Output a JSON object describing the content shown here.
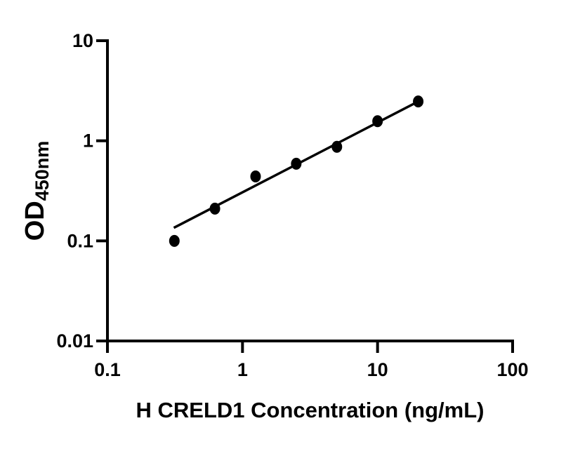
{
  "figure": {
    "background": "#ffffff",
    "foreground": "#000000"
  },
  "chart_data": {
    "type": "scatter",
    "title": "",
    "xlabel": "H CRELD1 Concentration (ng/mL)",
    "ylabel": "OD",
    "ylabel_subscript": "450nm",
    "x_scale": "log",
    "y_scale": "log",
    "xlim": [
      0.1,
      100
    ],
    "ylim": [
      0.01,
      10
    ],
    "grid": false,
    "legend": null,
    "x_ticks": [
      {
        "value": 0.1,
        "label": "0.1"
      },
      {
        "value": 1,
        "label": "1"
      },
      {
        "value": 10,
        "label": "10"
      },
      {
        "value": 100,
        "label": "100"
      }
    ],
    "y_ticks": [
      {
        "value": 0.01,
        "label": "0.01"
      },
      {
        "value": 0.1,
        "label": "0.1"
      },
      {
        "value": 1,
        "label": "1"
      },
      {
        "value": 10,
        "label": "10"
      }
    ],
    "series": [
      {
        "name": "standard-curve-points",
        "kind": "scatter",
        "marker": "filled-circle",
        "color": "#000000",
        "points": [
          {
            "x": 0.313,
            "y": 0.1
          },
          {
            "x": 0.625,
            "y": 0.21
          },
          {
            "x": 1.25,
            "y": 0.44
          },
          {
            "x": 2.5,
            "y": 0.59
          },
          {
            "x": 5,
            "y": 0.87
          },
          {
            "x": 10,
            "y": 1.57
          },
          {
            "x": 20,
            "y": 2.47
          }
        ]
      },
      {
        "name": "fit-line",
        "kind": "line",
        "color": "#000000",
        "points": [
          {
            "x": 0.31,
            "y": 0.135
          },
          {
            "x": 20,
            "y": 2.47
          }
        ]
      }
    ]
  }
}
